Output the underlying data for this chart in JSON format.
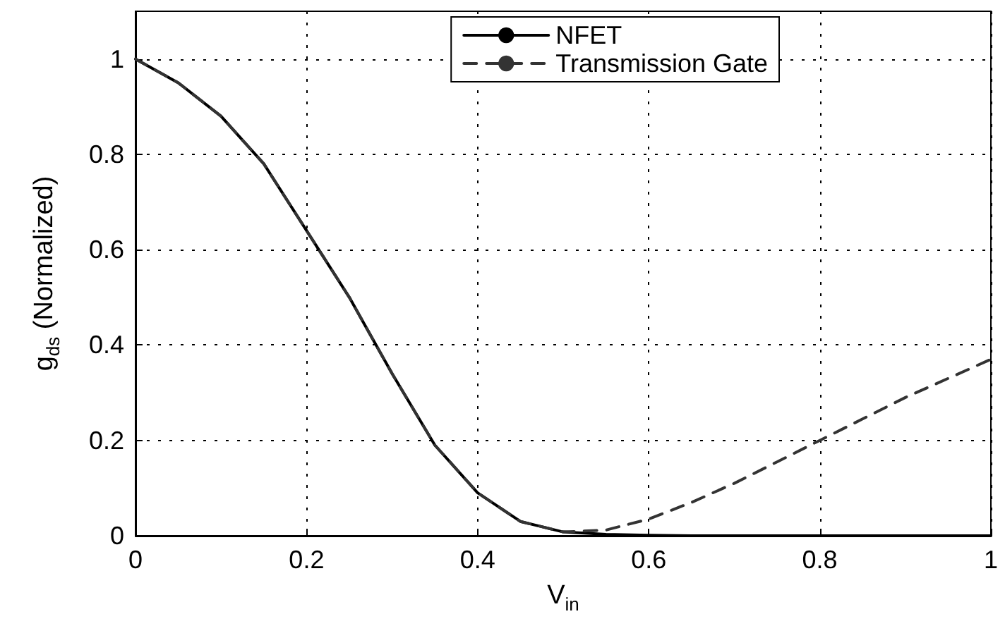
{
  "chart_data": {
    "type": "line",
    "xlabel": "V$_{in}$",
    "ylabel": "g$_{ds}$ (Normalized)",
    "x": [
      0,
      0.05,
      0.1,
      0.15,
      0.2,
      0.25,
      0.3,
      0.35,
      0.4,
      0.45,
      0.5,
      0.55,
      0.6,
      0.65,
      0.7,
      0.75,
      0.8,
      0.85,
      0.9,
      0.95,
      1
    ],
    "series": [
      {
        "name": "NFET",
        "color": "#000000",
        "line_style": "solid",
        "values": [
          1,
          0.95,
          0.88,
          0.78,
          0.64,
          0.5,
          0.34,
          0.19,
          0.09,
          0.03,
          0.008,
          0.003,
          0.001,
          0,
          0,
          0,
          0,
          0,
          0,
          0,
          0
        ]
      },
      {
        "name": "Transmission Gate",
        "color": "#333333",
        "line_style": "dashed",
        "values": [
          1,
          0.95,
          0.88,
          0.78,
          0.64,
          0.5,
          0.34,
          0.19,
          0.09,
          0.03,
          0.008,
          0.012,
          0.035,
          0.07,
          0.11,
          0.155,
          0.2,
          0.245,
          0.29,
          0.33,
          0.37
        ]
      }
    ],
    "xlim": [
      0,
      1
    ],
    "xticks": [
      0,
      0.2,
      0.4,
      0.6,
      0.8,
      1
    ],
    "ylim": [
      0,
      1.1
    ],
    "yticks": [
      0,
      0.2,
      0.4,
      0.6,
      0.8,
      1
    ],
    "grid": true,
    "legend": "top right",
    "marker": "none"
  }
}
